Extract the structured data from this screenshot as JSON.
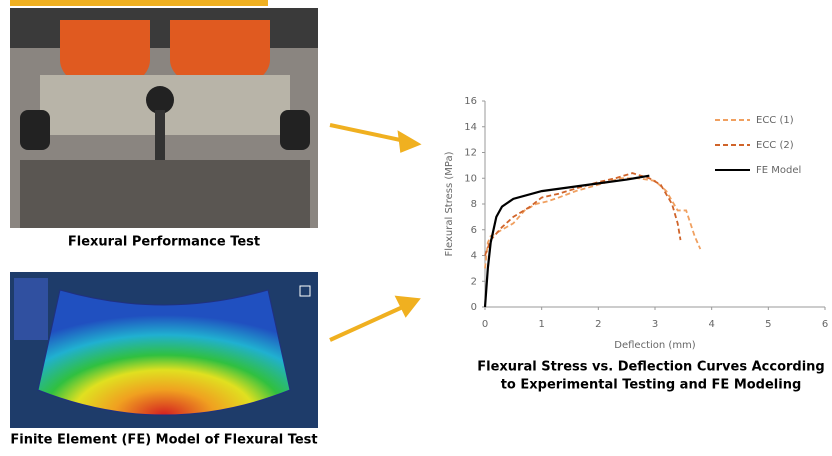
{
  "captions": {
    "photo": "Flexural Performance Test",
    "model": "Finite Element (FE) Model of Flexural Test"
  },
  "chart_data": {
    "type": "line",
    "xlabel": "Deflection (mm)",
    "ylabel": "Flexural Stress (MPa)",
    "caption": [
      "Flexural Stress vs. Deflection Curves According",
      "to Experimental Testing and FE Modeling"
    ],
    "xlim": [
      0,
      6
    ],
    "xticks": [
      0,
      1,
      2,
      3,
      4,
      5,
      6
    ],
    "ylim": [
      0,
      16
    ],
    "yticks": [
      0,
      2,
      4,
      6,
      8,
      10,
      12,
      14,
      16
    ],
    "series": [
      {
        "name": "ECC (1)",
        "color": "#f0a060",
        "dashed": true,
        "x": [
          0,
          0.05,
          0.1,
          0.3,
          0.5,
          0.7,
          0.9,
          1.1,
          1.3,
          1.6,
          2,
          2.4,
          2.7,
          3,
          3.2,
          3.4,
          3.55,
          3.7,
          3.8
        ],
        "values": [
          3,
          5,
          5.5,
          6,
          6.5,
          7.5,
          8,
          8.2,
          8.5,
          9,
          9.5,
          10,
          10,
          9.8,
          9,
          7.5,
          7.5,
          5.5,
          4.5
        ]
      },
      {
        "name": "ECC (2)",
        "color": "#d0642a",
        "dashed": true,
        "x": [
          0,
          0.1,
          0.3,
          0.5,
          0.8,
          1,
          1.3,
          1.6,
          2,
          2.3,
          2.6,
          2.9,
          3.1,
          3.3,
          3.4,
          3.45
        ],
        "values": [
          4,
          5.2,
          6.2,
          7,
          7.8,
          8.5,
          8.8,
          9.2,
          9.7,
          10,
          10.4,
          10,
          9.5,
          8,
          6.5,
          5.2
        ]
      },
      {
        "name": "FE Model",
        "color": "#000000",
        "dashed": false,
        "x": [
          0,
          0.05,
          0.1,
          0.2,
          0.3,
          0.5,
          1,
          1.5,
          2,
          2.5,
          2.9
        ],
        "values": [
          0,
          3,
          5,
          7,
          7.8,
          8.4,
          9,
          9.3,
          9.6,
          9.9,
          10.2
        ]
      }
    ]
  }
}
